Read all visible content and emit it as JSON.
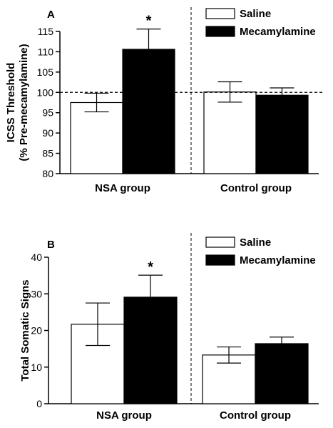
{
  "chart_data": [
    {
      "type": "bar",
      "panel_letter": "A",
      "ylabel_lines": [
        "ICSS Threshold",
        "(% Pre-mecamylamine)"
      ],
      "ylim": [
        80,
        115
      ],
      "yticks": [
        80,
        85,
        90,
        95,
        100,
        105,
        110,
        115
      ],
      "categories": [
        "NSA group",
        "Control group"
      ],
      "series": [
        {
          "name": "Saline",
          "color": "#ffffff",
          "values": [
            97.5,
            100.1
          ],
          "errors": [
            2.3,
            2.5
          ]
        },
        {
          "name": "Mecamylamine",
          "color": "#000000",
          "values": [
            110.6,
            99.3
          ],
          "errors": [
            5.0,
            1.8
          ]
        }
      ],
      "significance": [
        {
          "text": "*",
          "category": 0,
          "series": 1
        }
      ],
      "reference_line": 100,
      "legend_position": "top-right",
      "grid": false
    },
    {
      "type": "bar",
      "panel_letter": "B",
      "ylabel_lines": [
        "Total Somatic Signs"
      ],
      "ylim": [
        0,
        40
      ],
      "yticks": [
        0,
        10,
        20,
        30,
        40
      ],
      "categories": [
        "NSA group",
        "Control group"
      ],
      "series": [
        {
          "name": "Saline",
          "color": "#ffffff",
          "values": [
            21.7,
            13.3
          ],
          "errors": [
            5.8,
            2.2
          ]
        },
        {
          "name": "Mecamylamine",
          "color": "#000000",
          "values": [
            29.1,
            16.4
          ],
          "errors": [
            6.0,
            1.8
          ]
        }
      ],
      "significance": [
        {
          "text": "*",
          "category": 0,
          "series": 1
        }
      ],
      "legend_position": "top-right",
      "grid": false
    }
  ]
}
